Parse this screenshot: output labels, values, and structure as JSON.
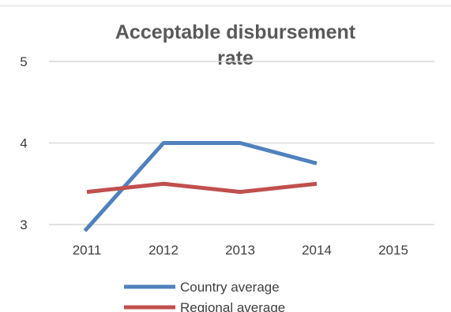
{
  "chart_data": {
    "type": "line",
    "title": "Acceptable disbursement rate",
    "title_lines": [
      "Acceptable disbursement",
      "rate"
    ],
    "categories": [
      "2011",
      "2012",
      "2013",
      "2014",
      "2015"
    ],
    "series": [
      {
        "name": "Country average",
        "values": [
          2.95,
          4.0,
          4.0,
          3.75,
          null
        ],
        "color": "#4f81bd"
      },
      {
        "name": "Regional average",
        "values": [
          3.4,
          3.5,
          3.4,
          3.5,
          null
        ],
        "color": "#c0504d"
      }
    ],
    "y_ticks": [
      "3",
      "4",
      "5"
    ],
    "ylim": [
      3,
      5
    ],
    "grid": true,
    "legend_position": "bottom"
  }
}
